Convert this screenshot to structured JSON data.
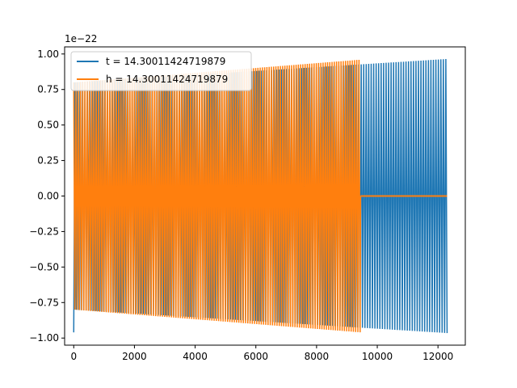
{
  "chart_data": {
    "type": "line",
    "title": "",
    "xlabel": "",
    "ylabel": "",
    "y_offset_label": "1e−22",
    "xlim": [
      -300,
      12900
    ],
    "ylim": [
      -1.05,
      1.05
    ],
    "x_ticks": [
      0,
      2000,
      4000,
      6000,
      8000,
      10000,
      12000
    ],
    "x_tick_labels": [
      "0",
      "2000",
      "4000",
      "6000",
      "8000",
      "10000",
      "12000"
    ],
    "y_ticks": [
      -1.0,
      -0.75,
      -0.5,
      -0.25,
      0.0,
      0.25,
      0.5,
      0.75,
      1.0
    ],
    "y_tick_labels": [
      "−1.00",
      "−0.75",
      "−0.50",
      "−0.25",
      "0.00",
      "0.25",
      "0.50",
      "0.75",
      "1.00"
    ],
    "grid": false,
    "legend_position": "top-left",
    "series": [
      {
        "name": "t = 14.30011424719879",
        "color": "#1f77b4",
        "x_range": [
          0,
          12300
        ],
        "envelope_start": 0.8,
        "envelope_end": 0.965,
        "initial_spike": -0.96
      },
      {
        "name": "h = 14.30011424719879",
        "color": "#ff7f0e",
        "x_range": [
          0,
          9450
        ],
        "envelope_start": 0.8,
        "envelope_end": 0.96,
        "flat_after_x": 9450,
        "flat_until_x": 12300,
        "flat_value": 0.0
      }
    ]
  }
}
